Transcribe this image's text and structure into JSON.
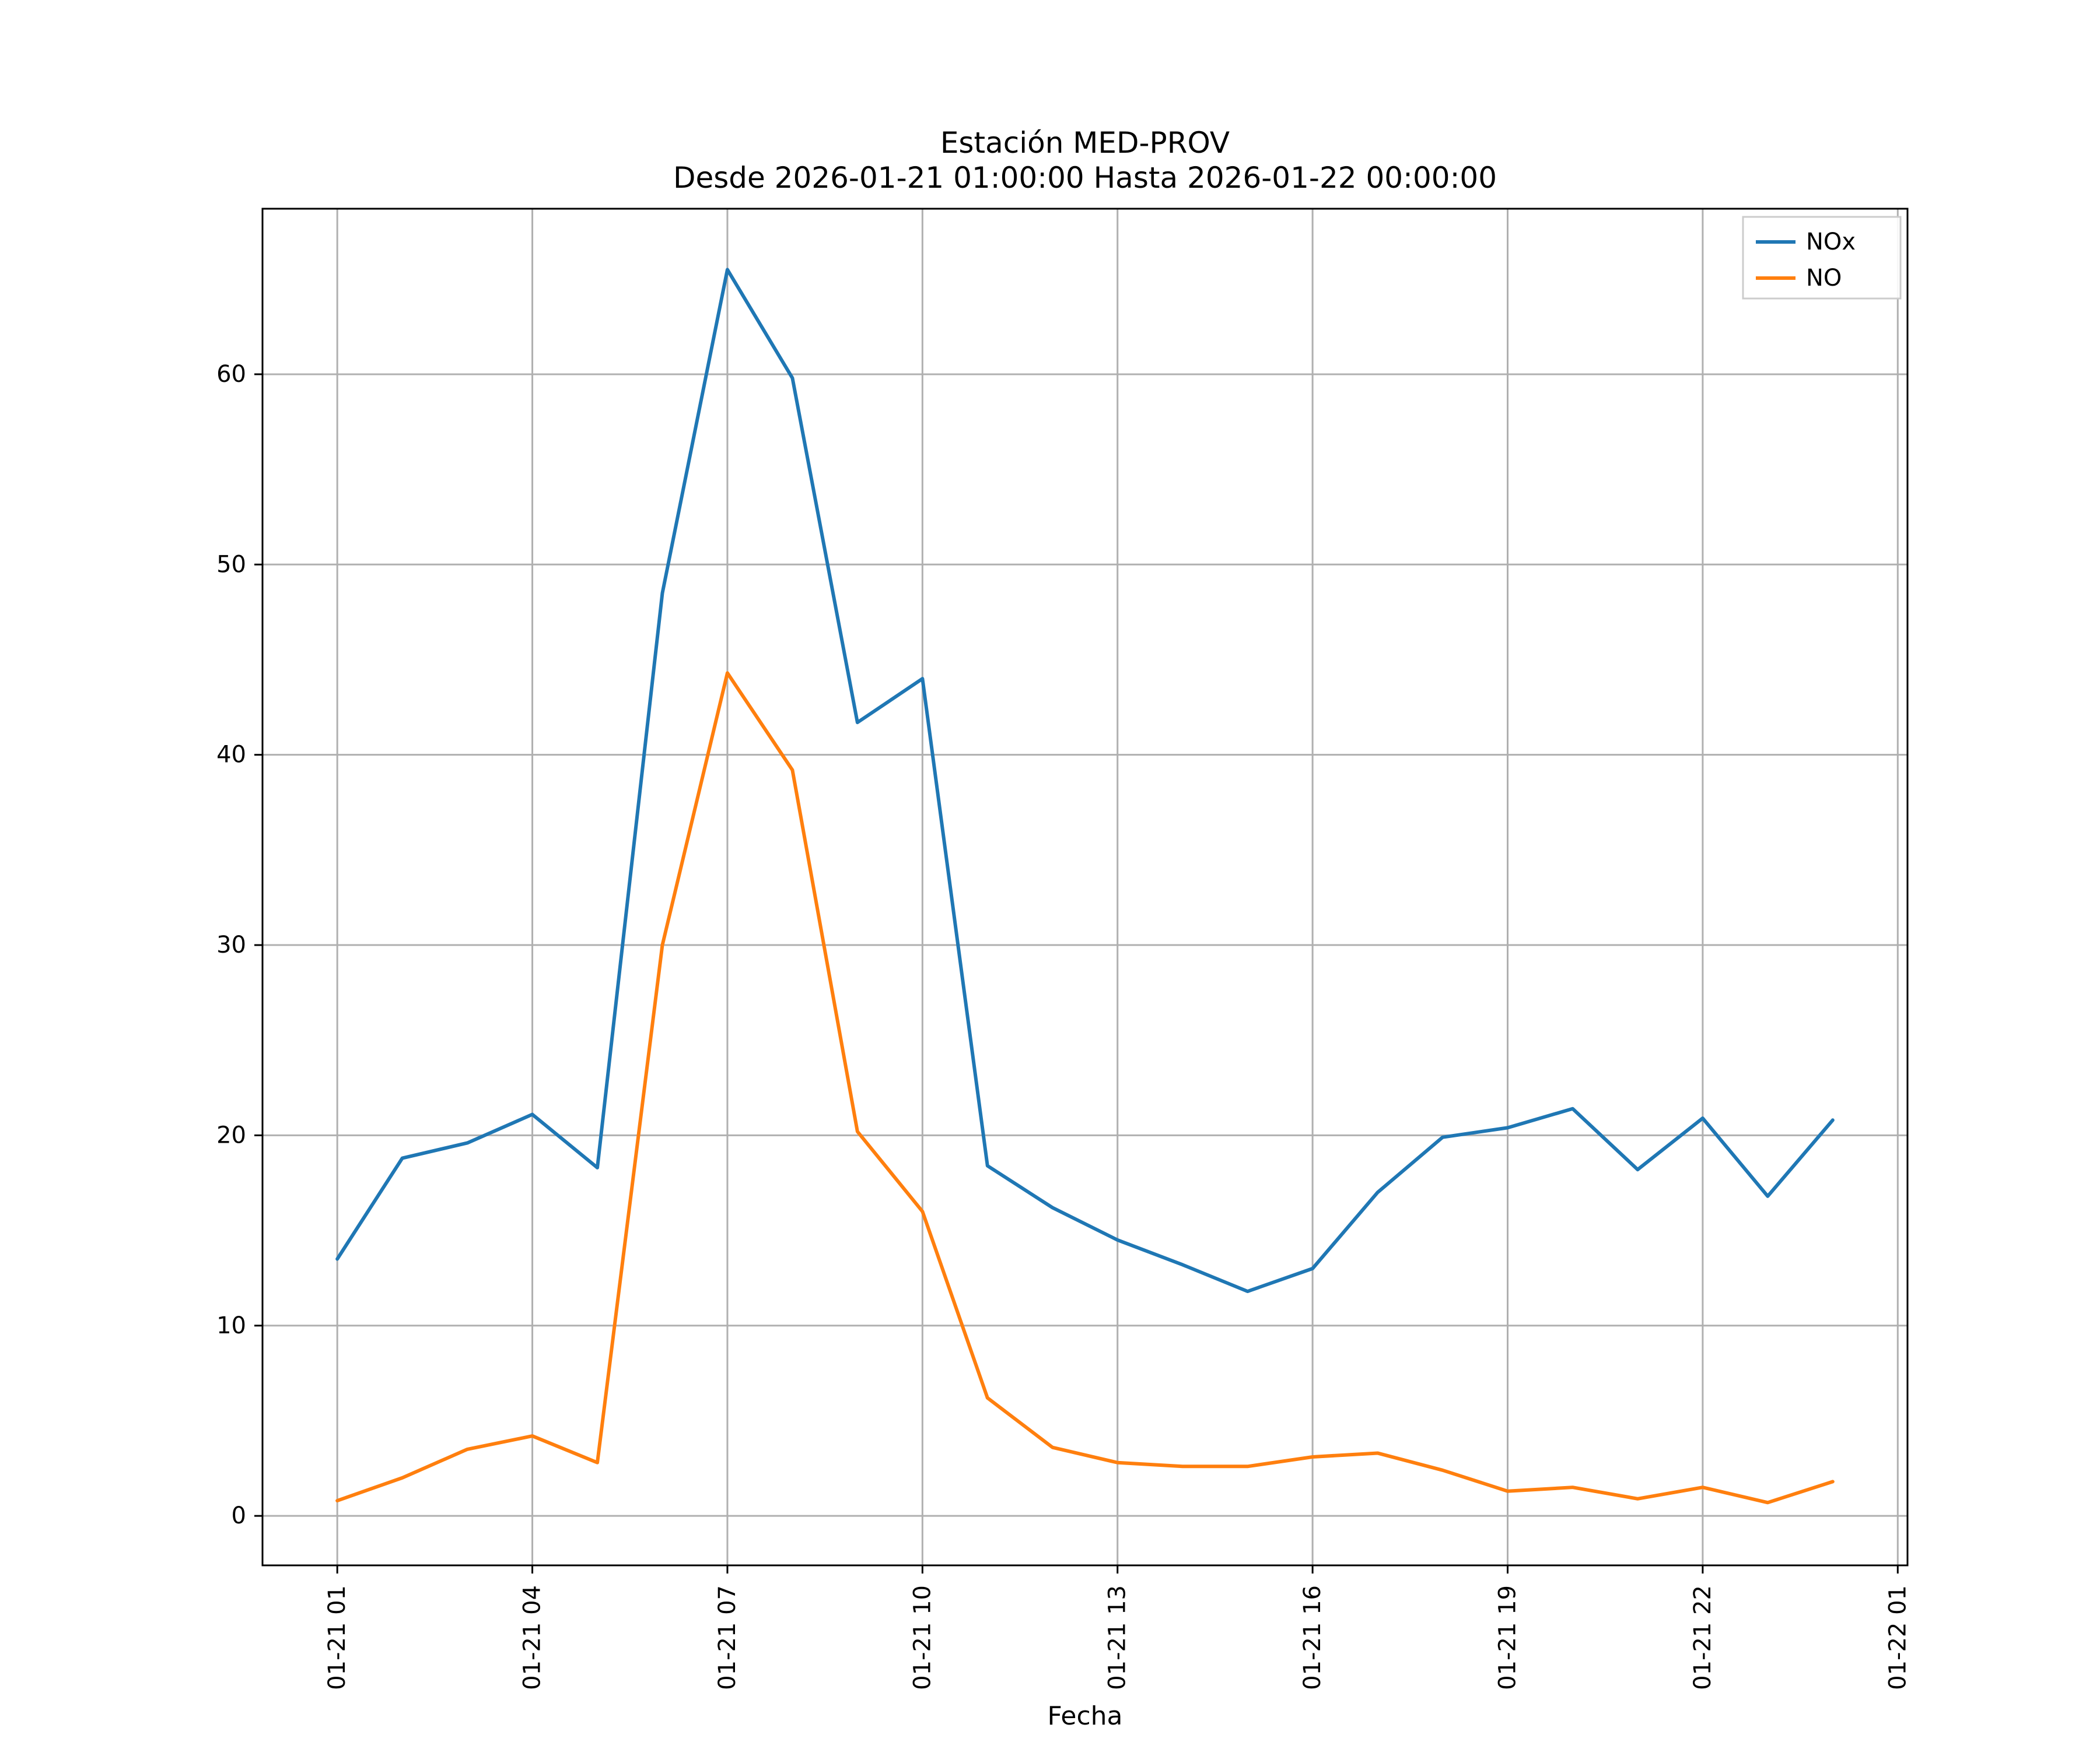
{
  "chart_data": {
    "type": "line",
    "title_line1": "Estación MED-PROV",
    "title_line2": "Desde 2026-01-21 01:00:00 Hasta 2026-01-22 00:00:00",
    "xlabel": "Fecha",
    "ylabel": "",
    "grid": true,
    "legend_position": "upper right",
    "x_hours": [
      1,
      2,
      3,
      4,
      5,
      6,
      7,
      8,
      9,
      10,
      11,
      12,
      13,
      14,
      15,
      16,
      17,
      18,
      19,
      20,
      21,
      22,
      23,
      24
    ],
    "x_tick_positions": [
      1,
      4,
      7,
      10,
      13,
      16,
      19,
      22,
      25
    ],
    "x_tick_labels": [
      "01-21 01",
      "01-21 04",
      "01-21 07",
      "01-21 10",
      "01-21 13",
      "01-21 16",
      "01-21 19",
      "01-21 22",
      "01-22 01"
    ],
    "y_ticks": [
      0,
      10,
      20,
      30,
      40,
      50,
      60
    ],
    "xlim": [
      -0.15,
      25.15
    ],
    "ylim": [
      -2.6,
      68.7
    ],
    "grid_color": "#b0b0b0",
    "axis_color": "#000000",
    "series": [
      {
        "name": "NOx",
        "color": "#1f77b4",
        "values": [
          13.5,
          18.8,
          19.6,
          21.1,
          18.3,
          48.5,
          65.5,
          59.8,
          41.7,
          44.0,
          18.4,
          16.2,
          14.5,
          13.2,
          11.8,
          13.0,
          17.0,
          19.9,
          20.4,
          21.4,
          18.2,
          20.9,
          16.8,
          20.8
        ]
      },
      {
        "name": "NO",
        "color": "#ff7f0e",
        "values": [
          0.8,
          2.0,
          3.5,
          4.2,
          2.8,
          30.0,
          44.3,
          39.2,
          20.2,
          16.0,
          6.2,
          3.6,
          2.8,
          2.6,
          2.6,
          3.1,
          3.3,
          2.4,
          1.3,
          1.5,
          0.9,
          1.5,
          0.7,
          1.8
        ]
      }
    ]
  }
}
